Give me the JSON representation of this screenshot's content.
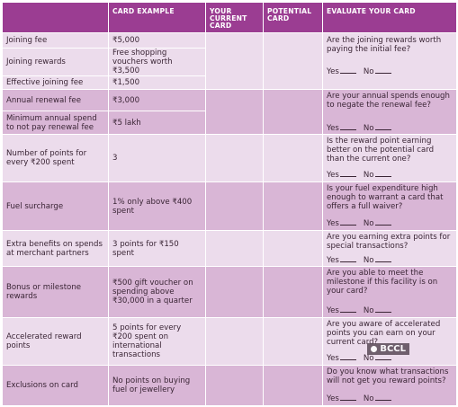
{
  "headers": [
    "CARD EXAMPLE",
    "YOUR CURRENT CARD",
    "POTENTIAL CARD",
    "EVALUATE YOUR CARD"
  ],
  "header_line1": {
    "c3": "YOUR",
    "c4": "POTENTIAL"
  },
  "header_line2": {
    "c3": "CURRENT",
    "c4": "CARD"
  },
  "header_line3": {
    "c3": "CARD"
  },
  "rows": [
    {
      "label": "Joining fee",
      "example": "₹5,000"
    },
    {
      "label": "Joining rewards",
      "example": "Free shopping vouchers worth ₹3,500"
    },
    {
      "label": "Effective joining fee",
      "example": "₹1,500"
    },
    {
      "label": "Annual renewal fee",
      "example": "₹3,000"
    },
    {
      "label": "Minimum annual spend to not pay renewal fee",
      "example": "₹5 lakh"
    },
    {
      "label": "Number of points for every ₹200 spent",
      "example": "3"
    },
    {
      "label": "Fuel surcharge",
      "example": "1% only above ₹400 spent"
    },
    {
      "label": "Extra benefits on spends at merchant partners",
      "example": "3 points for ₹150 spent"
    },
    {
      "label": "Bonus or milestone rewards",
      "example": "₹500 gift voucher on spending above ₹30,000 in a quarter"
    },
    {
      "label": "Accelerated reward points",
      "example": "5 points for every ₹200 spent on international transactions"
    },
    {
      "label": "Exclusions on card",
      "example": "No points on buying fuel or jewellery"
    }
  ],
  "evaluations": [
    {
      "question": "Are the joining rewards worth paying the initial fee?"
    },
    {
      "question": "Are your annual spends enough to negate the renewal fee?"
    },
    {
      "question": "Is the reward point earning better on the potential card than the current one?"
    },
    {
      "question": "Is your fuel expenditure high enough to warrant a card that offers a full waiver?"
    },
    {
      "question": "Are you earning extra points for special transactions?"
    },
    {
      "question": "Are you able to meet the milestone if this facility is on your card?"
    },
    {
      "question": "Are you aware of accelerated points you can earn on your current card?"
    },
    {
      "question": "Do you know what transactions will not get you reward points?"
    }
  ],
  "yes_label": "Yes",
  "no_label": "No",
  "watermark": "BCCL",
  "colors": {
    "header": "#9b3d92",
    "row_light": "#ecdcec",
    "row_dark": "#d9b6d6"
  }
}
